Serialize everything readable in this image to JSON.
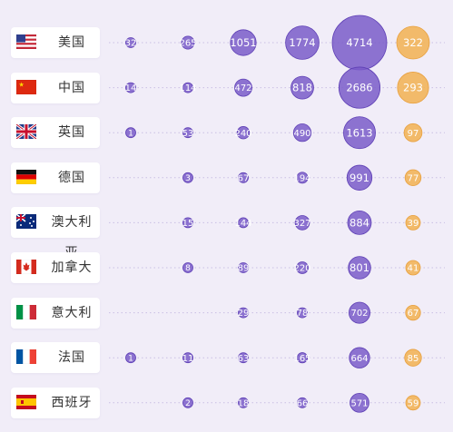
{
  "chart_data": {
    "type": "bubble-table",
    "columns_count": 6,
    "rows": [
      {
        "country": "美国",
        "flag": "us-flag-icon",
        "values": [
          32,
          265,
          1051,
          1774,
          4714,
          322
        ]
      },
      {
        "country": "中国",
        "flag": "cn-flag-icon",
        "values": [
          14,
          114,
          472,
          818,
          2686,
          293
        ]
      },
      {
        "country": "英国",
        "flag": "uk-flag-icon",
        "values": [
          1,
          53,
          240,
          490,
          1613,
          97
        ]
      },
      {
        "country": "德国",
        "flag": "de-flag-icon",
        "values": [
          null,
          3,
          67,
          194,
          991,
          77
        ]
      },
      {
        "country": "澳大利亚",
        "flag": "au-flag-icon",
        "values": [
          null,
          15,
          144,
          327,
          884,
          39
        ]
      },
      {
        "country": "加拿大",
        "flag": "ca-flag-icon",
        "values": [
          null,
          8,
          89,
          220,
          801,
          41
        ]
      },
      {
        "country": "意大利",
        "flag": "it-flag-icon",
        "values": [
          null,
          null,
          29,
          78,
          702,
          67
        ]
      },
      {
        "country": "法国",
        "flag": "fr-flag-icon",
        "values": [
          1,
          11,
          63,
          165,
          664,
          85
        ]
      },
      {
        "country": "西班牙",
        "flag": "es-flag-icon",
        "values": [
          null,
          2,
          18,
          66,
          571,
          59
        ]
      }
    ],
    "colors": {
      "bubble": "#7a5cc9",
      "bubble_edge": "#5e3fb5",
      "last_column": "#f2b45a",
      "dotted_line": "#c9bfe3"
    }
  }
}
